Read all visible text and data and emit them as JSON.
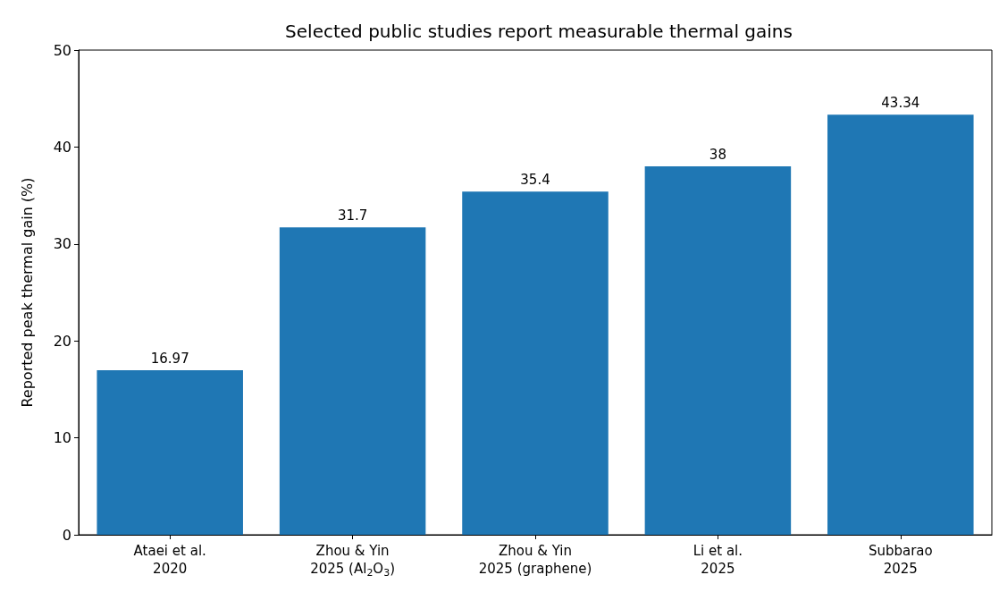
{
  "chart_data": {
    "type": "bar",
    "title": "Selected public studies report measurable thermal gains",
    "ylabel": "Reported peak thermal gain (%)",
    "categories": [
      "Ataei et al.\n2020",
      "Zhou & Yin\n2025 (Al$_{2}$O$_{3}$)",
      "Zhou & Yin\n2025 (graphene)",
      "Li et al.\n2025",
      "Subbarao\n2025"
    ],
    "values": [
      16.97,
      31.7,
      35.4,
      38,
      43.34
    ],
    "color": "#1f77b4",
    "ylim": [
      0,
      50
    ],
    "yticks": [
      0,
      10,
      20,
      30,
      40,
      50
    ],
    "data_labels": true,
    "grid": false
  }
}
